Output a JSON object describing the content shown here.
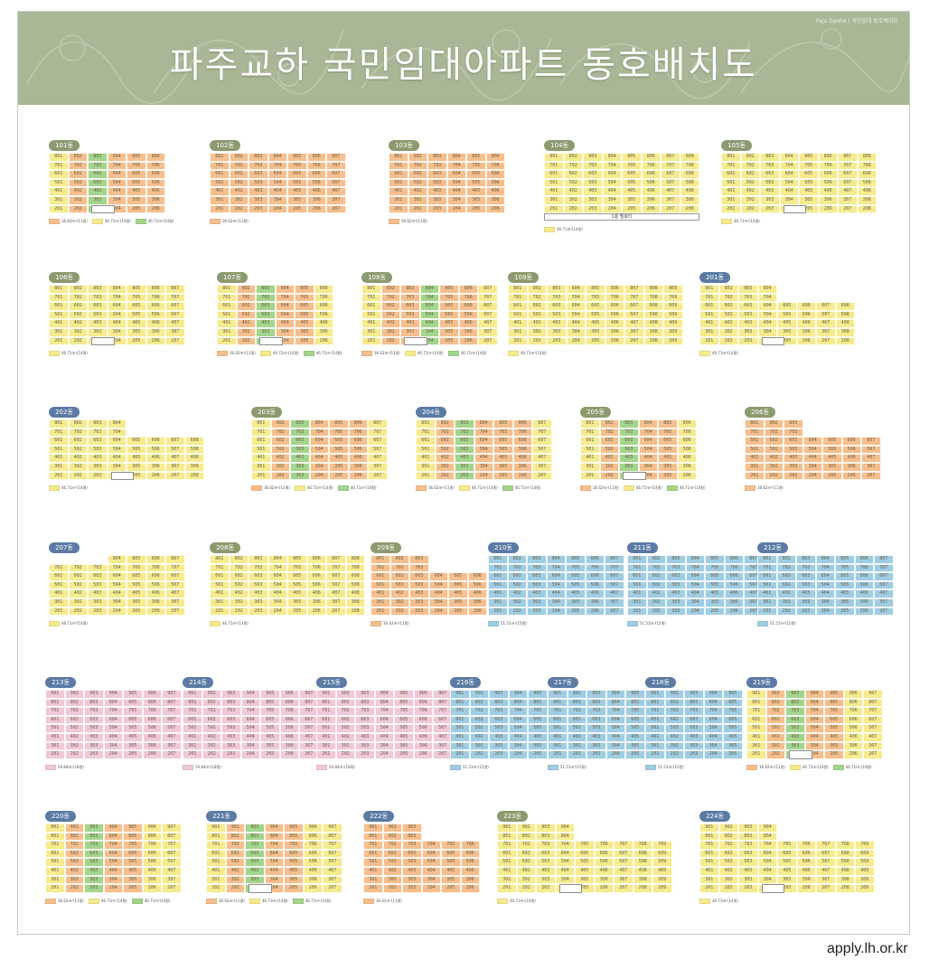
{
  "banner": {
    "title": "파주교하 국민임대아파트 동호배치도",
    "note": "Paju Gyoha | 국민임대 동호배치도",
    "bg": "#a9b796"
  },
  "footer": {
    "site": "apply.lh.or.kr"
  },
  "colors": {
    "orange": "#f6bf8d",
    "yellow": "#f6eb8d",
    "green": "#a3d58d",
    "blue": "#9fcde4",
    "pink": "#f1c8d8",
    "tag_olive": "#8d9a6f",
    "tag_blue": "#5b7ba4"
  },
  "legend_text": {
    "orange": "36.62m²(11평)",
    "yellow": "46.71m²(14평)",
    "green": "46.71m²(14평)",
    "blue": "51.51m²(15평)",
    "pink": "59.84m²(18평)"
  },
  "buildings": [
    {
      "label": "101동",
      "tag": "olive",
      "cols": [
        "y",
        "o",
        "g",
        "o",
        "o",
        "o"
      ],
      "floors": 7,
      "step": 0,
      "pil": true,
      "legend": [
        "o",
        "y",
        "g"
      ]
    },
    {
      "label": "102동",
      "tag": "olive",
      "cols": [
        "o",
        "o",
        "o",
        "o",
        "o",
        "o",
        "o"
      ],
      "floors": 7,
      "step": 0,
      "pil": false,
      "legend": [
        "o"
      ]
    },
    {
      "label": "103동",
      "tag": "olive",
      "cols": [
        "o",
        "o",
        "o",
        "o",
        "o",
        "o"
      ],
      "floors": 7,
      "step": 0,
      "pil": false,
      "legend": [
        "o"
      ]
    },
    {
      "label": "104동",
      "tag": "olive",
      "cols": [
        "y",
        "y",
        "y",
        "y",
        "y",
        "y",
        "y",
        "y"
      ],
      "floors": 7,
      "step": 0,
      "pil": false,
      "legend": [
        "y"
      ],
      "base": "1층 필로티"
    },
    {
      "label": "105동",
      "tag": "olive",
      "cols": [
        "y",
        "y",
        "y",
        "y",
        "y",
        "y",
        "y",
        "y"
      ],
      "floors": 7,
      "step": 0,
      "pil": true,
      "legend": [
        "y"
      ]
    },
    {
      "label": "106동",
      "tag": "olive",
      "cols": [
        "y",
        "y",
        "y",
        "y",
        "y",
        "y",
        "y"
      ],
      "floors": 7,
      "step": 0,
      "pil": true,
      "legend": [
        "y"
      ]
    },
    {
      "label": "107동",
      "tag": "olive",
      "cols": [
        "y",
        "o",
        "g",
        "o",
        "o",
        "y"
      ],
      "floors": 7,
      "step": 0,
      "pil": true,
      "legend": [
        "o",
        "y",
        "g"
      ]
    },
    {
      "label": "108동",
      "tag": "olive",
      "cols": [
        "y",
        "o",
        "o",
        "g",
        "o",
        "o",
        "y"
      ],
      "floors": 7,
      "step": 0,
      "pil": true,
      "legend": [
        "o",
        "y",
        "g"
      ]
    },
    {
      "label": "109동",
      "tag": "olive",
      "cols": [
        "y",
        "y",
        "y",
        "y",
        "y",
        "y",
        "y",
        "y",
        "y"
      ],
      "floors": 7,
      "step": 0,
      "pil": false,
      "legend": [
        "y"
      ]
    },
    {
      "label": "201동",
      "tag": "blue",
      "cols": [
        "y",
        "y",
        "y",
        "y",
        "y",
        "y",
        "y",
        "y"
      ],
      "floors": 7,
      "step": 4,
      "pil": true,
      "legend": [
        "y"
      ]
    },
    {
      "label": "202동",
      "tag": "blue",
      "cols": [
        "y",
        "y",
        "y",
        "y",
        "y",
        "y",
        "y",
        "y"
      ],
      "floors": 7,
      "step": 4,
      "pil": true,
      "legend": [
        "y"
      ]
    },
    {
      "label": "203동",
      "tag": "olive",
      "cols": [
        "y",
        "o",
        "g",
        "o",
        "o",
        "o",
        "y"
      ],
      "floors": 7,
      "step": 0,
      "pil": false,
      "legend": [
        "o",
        "y",
        "g"
      ]
    },
    {
      "label": "204동",
      "tag": "blue",
      "cols": [
        "y",
        "o",
        "g",
        "o",
        "o",
        "o",
        "y"
      ],
      "floors": 7,
      "step": 0,
      "pil": false,
      "legend": [
        "o",
        "y",
        "g"
      ]
    },
    {
      "label": "205동",
      "tag": "olive",
      "cols": [
        "y",
        "o",
        "g",
        "o",
        "o",
        "y"
      ],
      "floors": 7,
      "step": 0,
      "pil": true,
      "legend": [
        "o",
        "y",
        "g"
      ]
    },
    {
      "label": "206동",
      "tag": "olive",
      "cols": [
        "o",
        "o",
        "o",
        "o",
        "o",
        "o",
        "o"
      ],
      "floors": 7,
      "step": 3,
      "pil": false,
      "legend": [
        "o"
      ]
    },
    {
      "label": "207동",
      "tag": "blue",
      "cols": [
        "y",
        "y",
        "y",
        "y",
        "y",
        "y",
        "y"
      ],
      "floors": 7,
      "step": -3,
      "pil": false,
      "legend": [
        "y"
      ]
    },
    {
      "label": "208동",
      "tag": "olive",
      "cols": [
        "y",
        "y",
        "y",
        "y",
        "y",
        "y",
        "y",
        "y"
      ],
      "floors": 7,
      "step": 0,
      "pil": false,
      "legend": [
        "y"
      ]
    },
    {
      "label": "209동",
      "tag": "olive",
      "cols": [
        "o",
        "o",
        "o",
        "o",
        "o",
        "o"
      ],
      "floors": 7,
      "step": 3,
      "pil": false,
      "legend": [
        "o"
      ]
    },
    {
      "label": "210동",
      "tag": "blue",
      "cols": [
        "b",
        "b",
        "b",
        "b",
        "b",
        "b",
        "b"
      ],
      "floors": 7,
      "step": 0,
      "pil": false,
      "legend": [
        "b"
      ]
    },
    {
      "label": "211동",
      "tag": "blue",
      "cols": [
        "b",
        "b",
        "b",
        "b",
        "b",
        "b",
        "b"
      ],
      "floors": 7,
      "step": 0,
      "pil": false,
      "legend": [
        "b"
      ]
    },
    {
      "label": "212동",
      "tag": "blue",
      "cols": [
        "b",
        "b",
        "b",
        "b",
        "b",
        "b",
        "b"
      ],
      "floors": 7,
      "step": 0,
      "pil": false,
      "legend": [
        "b"
      ]
    },
    {
      "label": "213동",
      "tag": "blue",
      "cols": [
        "p",
        "p",
        "p",
        "p",
        "p",
        "p",
        "p"
      ],
      "floors": 8,
      "step": 0,
      "pil": false,
      "legend": [
        "p"
      ]
    },
    {
      "label": "214동",
      "tag": "blue",
      "cols": [
        "p",
        "p",
        "p",
        "p",
        "p",
        "p",
        "p"
      ],
      "floors": 8,
      "step": 0,
      "pil": false,
      "legend": [
        "p"
      ]
    },
    {
      "label": "215동",
      "tag": "blue",
      "cols": [
        "p",
        "p",
        "p",
        "p",
        "p",
        "p",
        "p"
      ],
      "floors": 8,
      "step": 0,
      "pil": false,
      "legend": [
        "p"
      ]
    },
    {
      "label": "216동",
      "tag": "blue",
      "cols": [
        "b",
        "b",
        "b",
        "b",
        "b"
      ],
      "floors": 8,
      "step": 0,
      "pil": false,
      "legend": [
        "b"
      ]
    },
    {
      "label": "217동",
      "tag": "blue",
      "cols": [
        "b",
        "b",
        "b",
        "b",
        "b"
      ],
      "floors": 8,
      "step": 0,
      "pil": false,
      "legend": [
        "b"
      ]
    },
    {
      "label": "218동",
      "tag": "blue",
      "cols": [
        "b",
        "b",
        "b",
        "b",
        "b"
      ],
      "floors": 8,
      "step": 0,
      "pil": false,
      "legend": [
        "b"
      ]
    },
    {
      "label": "219동",
      "tag": "blue",
      "cols": [
        "y",
        "o",
        "g",
        "o",
        "o",
        "y",
        "y"
      ],
      "floors": 8,
      "step": 0,
      "pil": true,
      "legend": [
        "o",
        "y",
        "g"
      ]
    },
    {
      "label": "220동",
      "tag": "blue",
      "cols": [
        "y",
        "o",
        "g",
        "o",
        "o",
        "y",
        "y"
      ],
      "floors": 8,
      "step": 0,
      "pil": false,
      "legend": [
        "o",
        "y",
        "g"
      ]
    },
    {
      "label": "221동",
      "tag": "blue",
      "cols": [
        "y",
        "o",
        "g",
        "o",
        "o",
        "y",
        "y"
      ],
      "floors": 8,
      "step": 0,
      "pil": true,
      "legend": [
        "o",
        "y",
        "g"
      ]
    },
    {
      "label": "222동",
      "tag": "blue",
      "cols": [
        "o",
        "o",
        "o",
        "o",
        "o",
        "o"
      ],
      "floors": 8,
      "step": 3,
      "pil": false,
      "legend": [
        "o"
      ]
    },
    {
      "label": "223동",
      "tag": "olive",
      "cols": [
        "y",
        "y",
        "y",
        "y",
        "y",
        "y",
        "y",
        "y",
        "y"
      ],
      "floors": 8,
      "step": 4,
      "pil": true,
      "legend": [
        "y"
      ]
    },
    {
      "label": "224동",
      "tag": "blue",
      "cols": [
        "y",
        "y",
        "y",
        "y",
        "y",
        "y",
        "y",
        "y",
        "y"
      ],
      "floors": 8,
      "step": 4,
      "pil": true,
      "legend": [
        "y"
      ]
    }
  ]
}
